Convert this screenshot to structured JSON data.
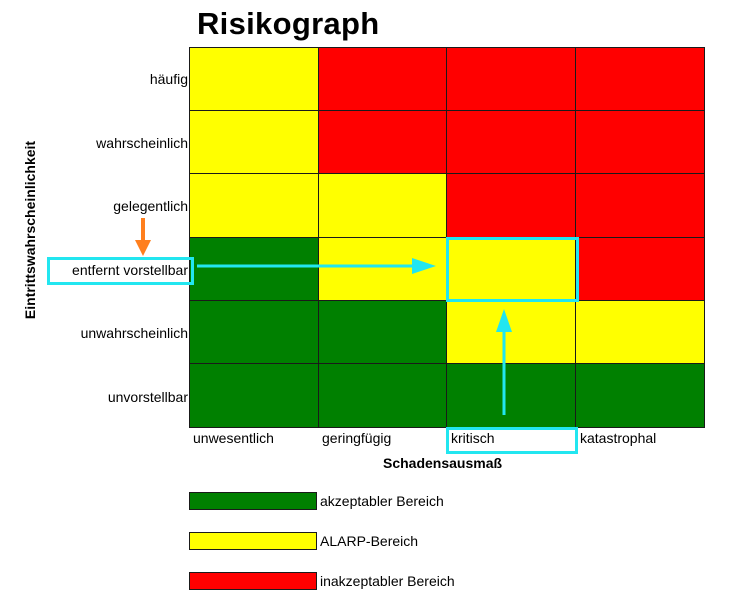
{
  "colors": {
    "acceptable": "#008000",
    "alarp": "#ffff00",
    "unacceptable": "#ff0000",
    "highlight": "#22e6f0",
    "pointer": "#ff7f1e"
  },
  "chart_data": {
    "type": "heatmap",
    "title": "Risikograph",
    "xlabel": "Schadensausmaß",
    "ylabel": "Eintrittswahrscheinlichkeit",
    "x_categories": [
      "unwesentlich",
      "geringfügig",
      "kritisch",
      "katastrophal"
    ],
    "y_categories_top_to_bottom": [
      "häufig",
      "wahrscheinlich",
      "gelegentlich",
      "entfernt vorstellbar",
      "unwahrscheinlich",
      "unvorstellbar"
    ],
    "matrix_top_to_bottom": [
      [
        "ALARP-Bereich",
        "inakzeptabler Bereich",
        "inakzeptabler Bereich",
        "inakzeptabler Bereich"
      ],
      [
        "ALARP-Bereich",
        "inakzeptabler Bereich",
        "inakzeptabler Bereich",
        "inakzeptabler Bereich"
      ],
      [
        "ALARP-Bereich",
        "ALARP-Bereich",
        "inakzeptabler Bereich",
        "inakzeptabler Bereich"
      ],
      [
        "akzeptabler Bereich",
        "ALARP-Bereich",
        "ALARP-Bereich",
        "inakzeptabler Bereich"
      ],
      [
        "akzeptabler Bereich",
        "akzeptabler Bereich",
        "ALARP-Bereich",
        "ALARP-Bereich"
      ],
      [
        "akzeptabler Bereich",
        "akzeptabler Bereich",
        "akzeptabler Bereich",
        "akzeptabler Bereich"
      ]
    ],
    "legend": [
      {
        "label": "akzeptabler Bereich",
        "color": "#008000"
      },
      {
        "label": "ALARP-Bereich",
        "color": "#ffff00"
      },
      {
        "label": "inakzeptabler Bereich",
        "color": "#ff0000"
      }
    ],
    "annotations": {
      "highlighted_x": "kritisch",
      "highlighted_y": "entfernt vorstellbar",
      "highlighted_cell_result": "ALARP-Bereich",
      "pointer_arrow": "from gelegentlich down to entfernt vorstellbar"
    },
    "grid": true,
    "legend_position": "bottom"
  },
  "legend": [
    {
      "label": "akzeptabler Bereich"
    },
    {
      "label": "ALARP-Bereich"
    },
    {
      "label": "inakzeptabler Bereich"
    }
  ]
}
